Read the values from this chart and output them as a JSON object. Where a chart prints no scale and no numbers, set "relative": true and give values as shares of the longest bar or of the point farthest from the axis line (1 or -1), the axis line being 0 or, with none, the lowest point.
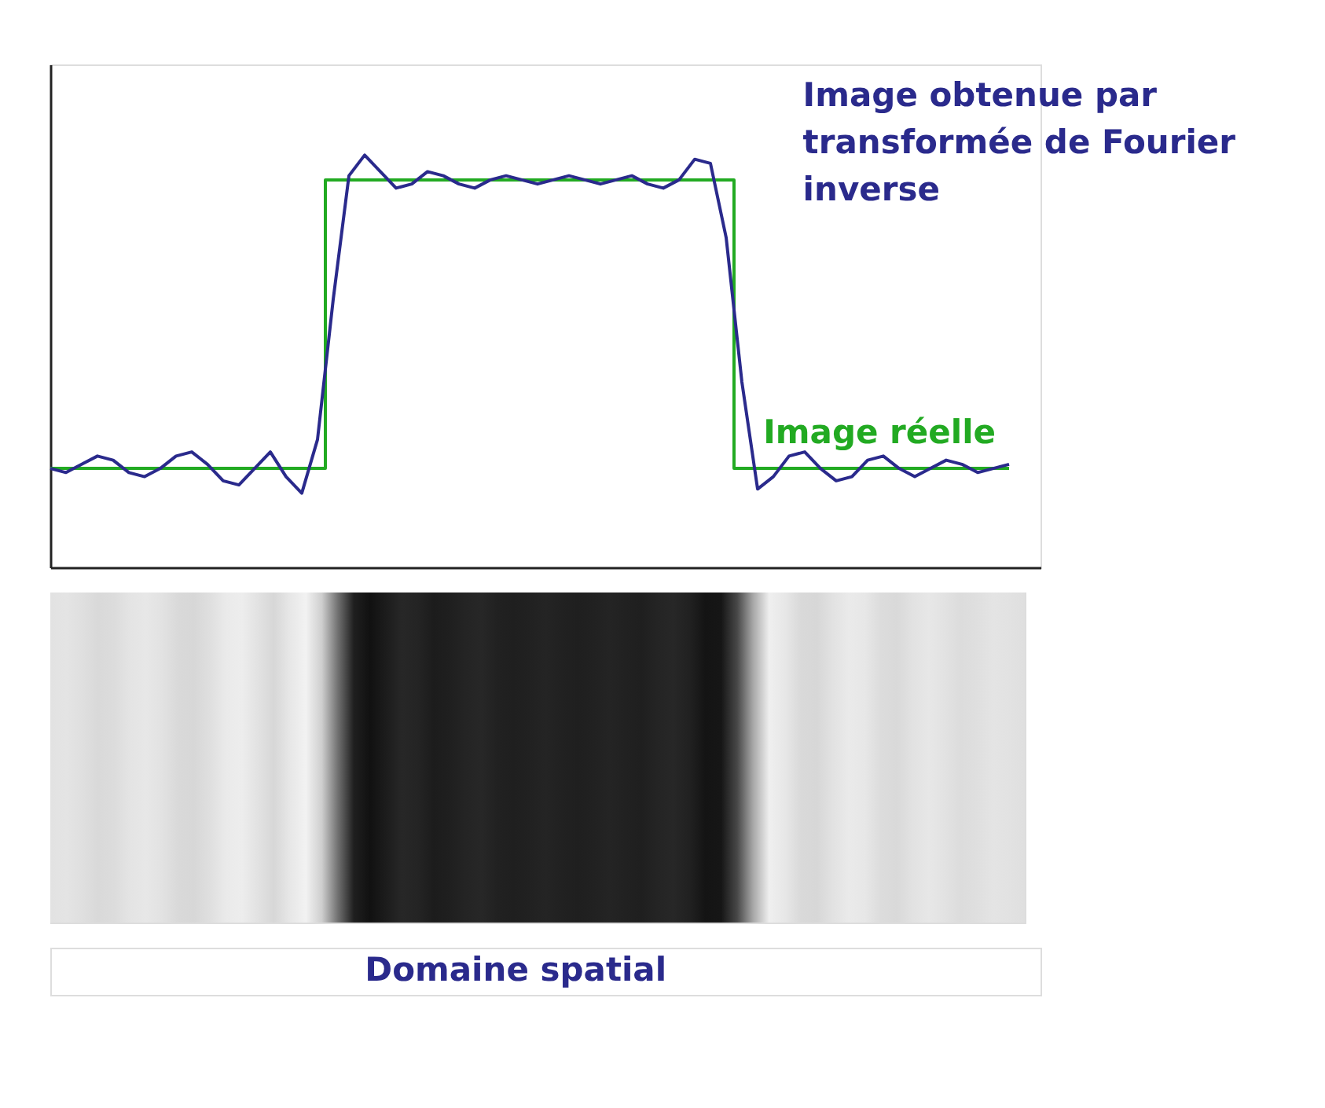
{
  "chart_data": {
    "type": "line",
    "relative": true,
    "annotations": [
      "Domaine spatial"
    ],
    "legend": false,
    "grid": false,
    "categories": [
      null,
      null,
      null,
      null,
      null,
      null,
      null,
      null,
      null,
      null,
      null,
      null,
      null,
      null,
      null,
      null,
      null,
      null,
      null,
      null,
      null,
      null,
      null,
      null,
      null,
      null,
      null,
      null,
      null,
      null,
      null,
      null,
      null,
      null,
      null,
      null,
      null,
      null,
      null,
      null,
      null,
      null,
      null,
      null,
      null,
      null,
      null,
      null,
      null,
      null,
      null,
      null,
      null,
      null,
      null,
      null,
      null,
      null,
      null,
      null,
      null,
      null
    ],
    "series": [
      {
        "name": "Image réelle",
        "type": "step",
        "color": "#22aa22",
        "values": [
          0.24,
          0.24,
          0.24,
          0.24,
          0.24,
          0.24,
          0.24,
          0.24,
          0.24,
          0.24,
          0.24,
          0.24,
          0.24,
          0.24,
          0.24,
          0.24,
          0.24,
          0.24,
          0.94,
          0.94,
          0.94,
          0.94,
          0.94,
          0.94,
          0.94,
          0.94,
          0.94,
          0.94,
          0.94,
          0.94,
          0.94,
          0.94,
          0.94,
          0.94,
          0.94,
          0.94,
          0.94,
          0.94,
          0.94,
          0.94,
          0.94,
          0.94,
          0.94,
          0.94,
          0.24,
          0.24,
          0.24,
          0.24,
          0.24,
          0.24,
          0.24,
          0.24,
          0.24,
          0.24,
          0.24,
          0.24,
          0.24,
          0.24,
          0.24,
          0.24,
          0.24,
          0.24
        ]
      },
      {
        "name": "Image obtenue par transformée de Fourier inverse",
        "type": "line",
        "color": "#2a2a8c",
        "values": [
          0.24,
          0.23,
          0.25,
          0.27,
          0.26,
          0.23,
          0.22,
          0.24,
          0.27,
          0.28,
          0.25,
          0.21,
          0.2,
          0.24,
          0.28,
          0.22,
          0.18,
          0.31,
          0.65,
          0.95,
          1.0,
          0.96,
          0.92,
          0.93,
          0.96,
          0.95,
          0.93,
          0.92,
          0.94,
          0.95,
          0.94,
          0.93,
          0.94,
          0.95,
          0.94,
          0.93,
          0.94,
          0.95,
          0.93,
          0.92,
          0.94,
          0.99,
          0.98,
          0.8,
          0.45,
          0.19,
          0.22,
          0.27,
          0.28,
          0.24,
          0.21,
          0.22,
          0.26,
          0.27,
          0.24,
          0.22,
          0.24,
          0.26,
          0.25,
          0.23,
          0.24,
          0.25
        ]
      }
    ]
  }
}
